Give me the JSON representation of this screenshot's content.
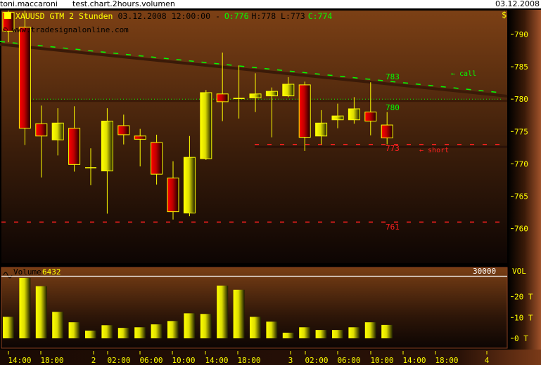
{
  "topbar": {
    "user": "toni.maccaroni",
    "chart_name": "test.chart.2hours.volumen",
    "date": "03.12.2008"
  },
  "price_panel": {
    "symbol": "XAUUSD GTM 2 Stunden",
    "timestamp": "03.12.2008 12:00:00 -",
    "open": "O:776",
    "hl": "H:778 L:773",
    "close": "C:774",
    "watermark": "© www.tradesignalonline.com",
    "currency": "$",
    "y_ticks": [
      "790",
      "785",
      "780",
      "775",
      "770",
      "765",
      "760"
    ],
    "levels": {
      "l783": "783",
      "l780": "780",
      "l773": "773",
      "l761": "761"
    },
    "call_label": "← call",
    "short_label": "← short",
    "colors": {
      "up": "#ffff00",
      "down": "#ff0000",
      "trend": "#00ff00",
      "short": "#ff2020",
      "axis_text": "#ffff00"
    }
  },
  "volume_panel": {
    "title": "Volume",
    "value": "6432",
    "max_label": "30000",
    "axis_title": "VOL",
    "y_ticks": [
      "20 T",
      "10 T",
      "0 T"
    ]
  },
  "x_axis": {
    "labels": [
      "14:00",
      "18:00",
      "2",
      "02:00",
      "06:00",
      "10:00",
      "14:00",
      "18:00",
      "3",
      "02:00",
      "06:00",
      "10:00",
      "14:00",
      "18:00",
      "4"
    ]
  },
  "chart_data": {
    "type": "candlestick",
    "ylim": [
      760,
      790
    ],
    "candles": [
      {
        "o": 793.4,
        "h": 796,
        "l": 788.8,
        "c": 790.5
      },
      {
        "o": 791.1,
        "h": 795,
        "l": 772.9,
        "c": 775.5
      },
      {
        "o": 776.2,
        "h": 779.0,
        "l": 767.9,
        "c": 774.3
      },
      {
        "o": 773.7,
        "h": 778.6,
        "l": 771.3,
        "c": 776.3
      },
      {
        "o": 775.5,
        "h": 778.9,
        "l": 768.8,
        "c": 769.9
      },
      {
        "o": 769.4,
        "h": 772.4,
        "l": 766.7,
        "c": 769.4
      },
      {
        "o": 768.9,
        "h": 778.6,
        "l": 762.3,
        "c": 776.6
      },
      {
        "o": 775.9,
        "h": 777.6,
        "l": 773.0,
        "c": 774.5
      },
      {
        "o": 774.3,
        "h": 775.4,
        "l": 769.6,
        "c": 773.8
      },
      {
        "o": 773.3,
        "h": 774.5,
        "l": 766.8,
        "c": 768.4
      },
      {
        "o": 767.8,
        "h": 770.4,
        "l": 761.4,
        "c": 762.6
      },
      {
        "o": 762.4,
        "h": 774.3,
        "l": 761.9,
        "c": 771.0
      },
      {
        "o": 770.8,
        "h": 781.4,
        "l": 770.6,
        "c": 781.0
      },
      {
        "o": 780.8,
        "h": 787.2,
        "l": 776.6,
        "c": 779.6
      },
      {
        "o": 780.1,
        "h": 785.2,
        "l": 777.0,
        "c": 780.1
      },
      {
        "o": 780.2,
        "h": 784.0,
        "l": 778.0,
        "c": 780.8
      },
      {
        "o": 780.5,
        "h": 781.8,
        "l": 774.1,
        "c": 781.2
      },
      {
        "o": 780.5,
        "h": 783.4,
        "l": 780.3,
        "c": 782.3
      },
      {
        "o": 782.2,
        "h": 782.7,
        "l": 772.0,
        "c": 774.1
      },
      {
        "o": 774.3,
        "h": 778.3,
        "l": 773.0,
        "c": 776.3
      },
      {
        "o": 776.8,
        "h": 779.3,
        "l": 775.5,
        "c": 777.4
      },
      {
        "o": 776.8,
        "h": 780.3,
        "l": 776.2,
        "c": 778.5
      },
      {
        "o": 778.0,
        "h": 782.6,
        "l": 774.4,
        "c": 776.6
      },
      {
        "o": 776,
        "h": 778,
        "l": 773,
        "c": 774
      }
    ],
    "volume_thousands": [
      10.3,
      29,
      25,
      12.7,
      7.7,
      3.7,
      6.3,
      5,
      5.3,
      6.7,
      8.3,
      12,
      11.7,
      25.3,
      23.3,
      10.3,
      8,
      2.7,
      5.3,
      4,
      4,
      5.3,
      7.7,
      6.432
    ],
    "volume_ylim": [
      0,
      30
    ],
    "trendline": {
      "start": 788.9,
      "end": 781.0
    },
    "horizontal_levels": [
      780,
      773,
      761
    ]
  }
}
